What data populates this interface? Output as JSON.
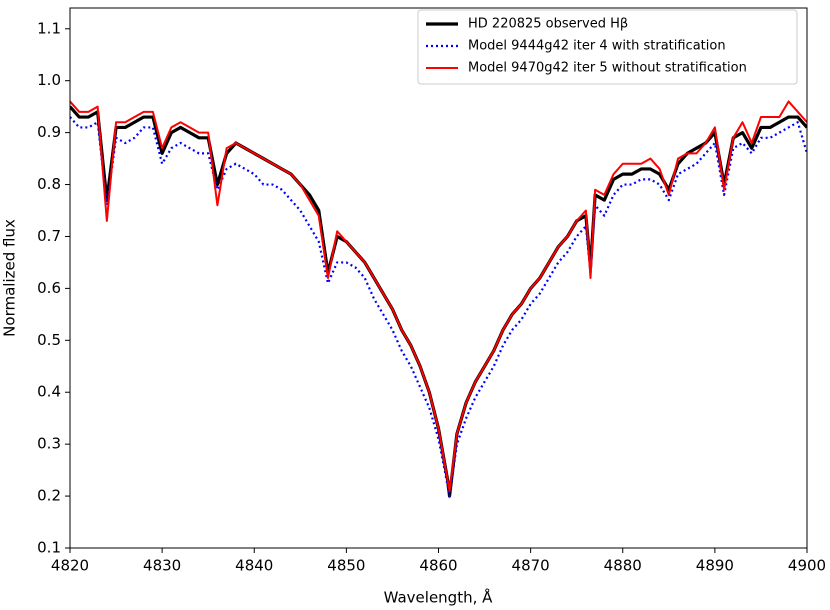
{
  "chart_data": {
    "type": "line",
    "xlabel": "Wavelength, Å",
    "ylabel": "Normalized flux",
    "x": [
      4820,
      4821,
      4822,
      4823,
      4824,
      4825,
      4826,
      4827,
      4828,
      4829,
      4830,
      4831,
      4832,
      4833,
      4834,
      4835,
      4836,
      4837,
      4838,
      4839,
      4840,
      4841,
      4842,
      4843,
      4844,
      4845,
      4846,
      4847,
      4848,
      4849,
      4850,
      4851,
      4852,
      4853,
      4854,
      4855,
      4856,
      4857,
      4858,
      4859,
      4860,
      4861,
      4861.2,
      4862,
      4863,
      4864,
      4865,
      4866,
      4867,
      4868,
      4869,
      4870,
      4871,
      4872,
      4873,
      4874,
      4875,
      4876,
      4876.5,
      4877,
      4878,
      4879,
      4880,
      4881,
      4882,
      4883,
      4884,
      4885,
      4886,
      4887,
      4888,
      4889,
      4890,
      4891,
      4892,
      4893,
      4894,
      4895,
      4896,
      4897,
      4898,
      4899,
      4900
    ],
    "series": [
      {
        "name": "HD 220825 observed Hβ",
        "color": "#000000",
        "linestyle": "solid",
        "width": 3.2,
        "values": [
          0.95,
          0.93,
          0.93,
          0.94,
          0.77,
          0.91,
          0.91,
          0.92,
          0.93,
          0.93,
          0.86,
          0.9,
          0.91,
          0.9,
          0.89,
          0.89,
          0.8,
          0.86,
          0.88,
          0.87,
          0.86,
          0.85,
          0.84,
          0.83,
          0.82,
          0.8,
          0.78,
          0.75,
          0.63,
          0.7,
          0.69,
          0.67,
          0.65,
          0.62,
          0.59,
          0.56,
          0.52,
          0.49,
          0.45,
          0.4,
          0.33,
          0.23,
          0.2,
          0.32,
          0.38,
          0.42,
          0.45,
          0.48,
          0.52,
          0.55,
          0.57,
          0.6,
          0.62,
          0.65,
          0.68,
          0.7,
          0.73,
          0.74,
          0.64,
          0.78,
          0.77,
          0.81,
          0.82,
          0.82,
          0.83,
          0.83,
          0.82,
          0.79,
          0.84,
          0.86,
          0.87,
          0.88,
          0.9,
          0.8,
          0.89,
          0.9,
          0.87,
          0.91,
          0.91,
          0.92,
          0.93,
          0.93,
          0.91
        ]
      },
      {
        "name": "Model 9444g42 iter 4 with stratification",
        "color": "#0000ff",
        "linestyle": "dotted",
        "width": 2.2,
        "values": [
          0.93,
          0.91,
          0.91,
          0.92,
          0.76,
          0.89,
          0.88,
          0.89,
          0.91,
          0.91,
          0.84,
          0.87,
          0.88,
          0.87,
          0.86,
          0.86,
          0.79,
          0.83,
          0.84,
          0.83,
          0.82,
          0.8,
          0.8,
          0.79,
          0.77,
          0.75,
          0.72,
          0.69,
          0.61,
          0.65,
          0.65,
          0.64,
          0.62,
          0.58,
          0.55,
          0.52,
          0.48,
          0.45,
          0.41,
          0.37,
          0.31,
          0.22,
          0.2,
          0.3,
          0.35,
          0.39,
          0.42,
          0.45,
          0.49,
          0.52,
          0.54,
          0.57,
          0.59,
          0.62,
          0.65,
          0.67,
          0.7,
          0.72,
          0.63,
          0.76,
          0.74,
          0.78,
          0.8,
          0.8,
          0.81,
          0.81,
          0.8,
          0.77,
          0.82,
          0.83,
          0.84,
          0.86,
          0.88,
          0.78,
          0.87,
          0.88,
          0.86,
          0.89,
          0.89,
          0.9,
          0.91,
          0.92,
          0.86
        ]
      },
      {
        "name": "Model 9470g42 iter 5 without stratification",
        "color": "#ff0000",
        "linestyle": "solid",
        "width": 2,
        "values": [
          0.96,
          0.94,
          0.94,
          0.95,
          0.73,
          0.92,
          0.92,
          0.93,
          0.94,
          0.94,
          0.87,
          0.91,
          0.92,
          0.91,
          0.9,
          0.9,
          0.76,
          0.87,
          0.88,
          0.87,
          0.86,
          0.85,
          0.84,
          0.83,
          0.82,
          0.8,
          0.77,
          0.74,
          0.62,
          0.71,
          0.69,
          0.67,
          0.65,
          0.62,
          0.59,
          0.56,
          0.52,
          0.49,
          0.45,
          0.4,
          0.33,
          0.23,
          0.21,
          0.32,
          0.38,
          0.42,
          0.45,
          0.48,
          0.52,
          0.55,
          0.57,
          0.6,
          0.62,
          0.65,
          0.68,
          0.7,
          0.73,
          0.75,
          0.62,
          0.79,
          0.78,
          0.82,
          0.84,
          0.84,
          0.84,
          0.85,
          0.83,
          0.78,
          0.85,
          0.86,
          0.86,
          0.88,
          0.91,
          0.79,
          0.89,
          0.92,
          0.88,
          0.93,
          0.93,
          0.93,
          0.96,
          0.94,
          0.92
        ]
      }
    ],
    "xlim": [
      4820,
      4900
    ],
    "xticks": [
      4820,
      4830,
      4840,
      4850,
      4860,
      4870,
      4880,
      4890,
      4900
    ],
    "ylim": [
      0.1,
      1.14
    ],
    "yticks": [
      0.1,
      0.2,
      0.3,
      0.4,
      0.5,
      0.6,
      0.7,
      0.8,
      0.9,
      {
        "value": 1,
        "label": "1.0"
      },
      1.1
    ],
    "grid": false,
    "legend": "upper right"
  }
}
